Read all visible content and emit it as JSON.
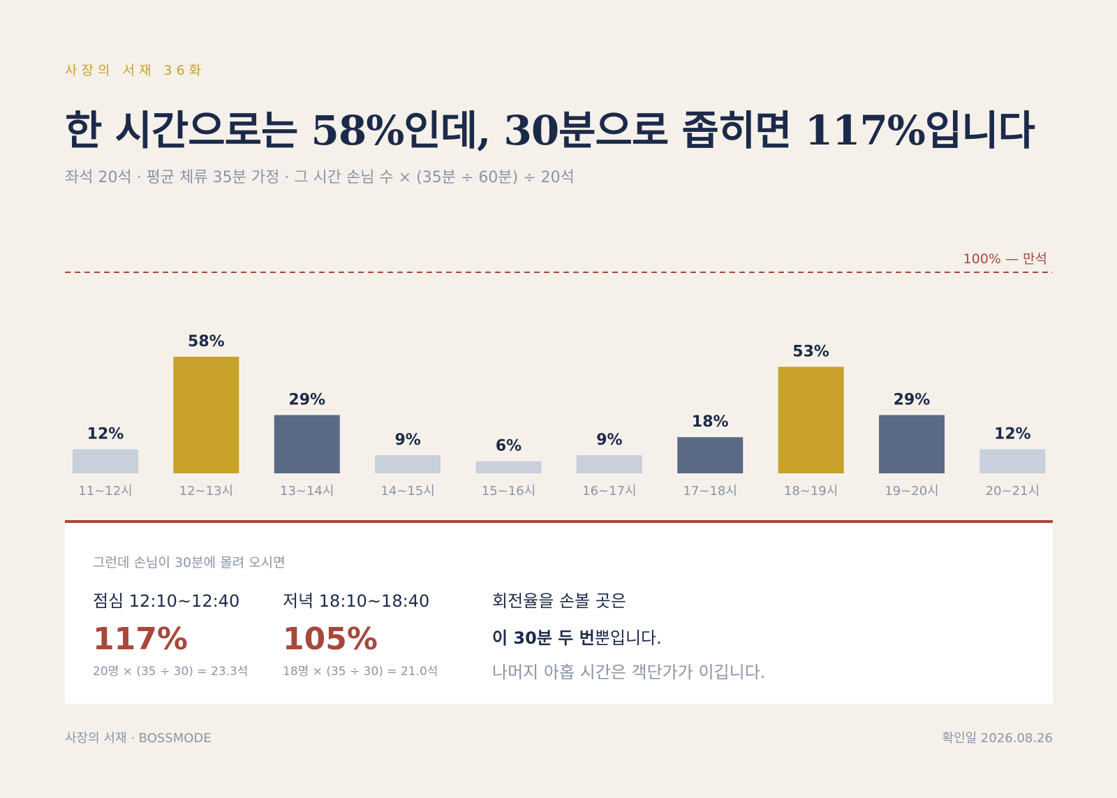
{
  "header": {
    "eyebrow": "사장의 서재 36화",
    "title": "한 시간으로는 58%인데, 30분으로 좁히면 117%입니다",
    "subtitle": "좌석 20석 · 평균 체류 35분 가정 · 그 시간 손님 수 × (35분 ÷ 60분) ÷ 20석"
  },
  "chart_data": {
    "type": "bar",
    "categories": [
      "11~12시",
      "12~13시",
      "13~14시",
      "14~15시",
      "15~16시",
      "16~17시",
      "17~18시",
      "18~19시",
      "19~20시",
      "20~21시"
    ],
    "values": [
      12,
      58,
      29,
      9,
      6,
      9,
      18,
      53,
      29,
      12
    ],
    "value_labels": [
      "12%",
      "58%",
      "29%",
      "9%",
      "6%",
      "9%",
      "18%",
      "53%",
      "29%",
      "12%"
    ],
    "levels": [
      "low",
      "peak",
      "mid",
      "low",
      "low",
      "low",
      "mid",
      "peak",
      "mid",
      "low"
    ],
    "ylim": [
      0,
      100
    ],
    "reference_line": {
      "value": 100,
      "label": "100% — 만석",
      "color": "#a8473b"
    },
    "colors": {
      "low": "#c9cfdb",
      "mid": "#5a6a86",
      "peak": "#c8a12b"
    }
  },
  "panel": {
    "lead": "그런데 손님이 30분에 몰려 오시면",
    "stats": [
      {
        "label": "점심 12:10~12:40",
        "value": "117%",
        "formula": "20명 × (35 ÷ 30) = 23.3석"
      },
      {
        "label": "저녁 18:10~18:40",
        "value": "105%",
        "formula": "18명 × (35 ÷ 30) = 21.0석"
      }
    ],
    "note": {
      "line1": "회전율을 손볼 곳은",
      "line2_bold": "이 30분 두 번",
      "line2_rest": "뿐입니다.",
      "line3": "나머지 아홉 시간은 객단가가 이깁니다."
    }
  },
  "footer": {
    "left": "사장의 서재 · BOSSMODE",
    "right": "확인일 2026.08.26"
  }
}
